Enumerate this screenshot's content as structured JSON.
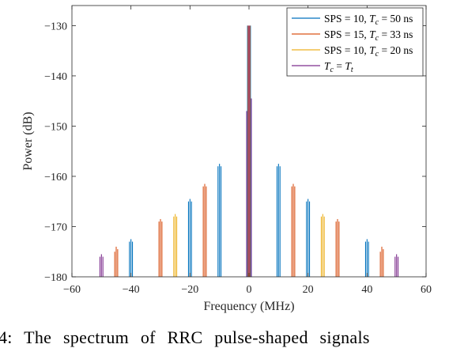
{
  "chart_data": {
    "type": "bar",
    "xlabel": "Frequency (MHz)",
    "ylabel": "Power (dB)",
    "xlim": [
      -60,
      60
    ],
    "ylim": [
      -180,
      -126
    ],
    "xticks": [
      -60,
      -40,
      -20,
      0,
      20,
      40,
      60
    ],
    "yticks": [
      -180,
      -170,
      -160,
      -150,
      -140,
      -130
    ],
    "grid": false,
    "legend_position": "top-right",
    "series": [
      {
        "name": "SPS = 10, Tc = 50 ns",
        "legend_parts": [
          "SPS = 10, ",
          "T",
          "c",
          " = 50 ns"
        ],
        "color": "#0072BD",
        "lines": [
          {
            "x": -40.5,
            "y": -173
          },
          {
            "x": -40,
            "y": -172.5
          },
          {
            "x": -39.5,
            "y": -173
          },
          {
            "x": -20.5,
            "y": -165
          },
          {
            "x": -20,
            "y": -164.5
          },
          {
            "x": -19.5,
            "y": -165
          },
          {
            "x": -10.5,
            "y": -158
          },
          {
            "x": -10,
            "y": -157.5
          },
          {
            "x": -9.5,
            "y": -158
          },
          {
            "x": -0.5,
            "y": -130
          },
          {
            "x": 0.5,
            "y": -130
          },
          {
            "x": 9.5,
            "y": -158
          },
          {
            "x": 10,
            "y": -157.5
          },
          {
            "x": 10.5,
            "y": -158
          },
          {
            "x": 19.5,
            "y": -165
          },
          {
            "x": 20,
            "y": -164.5
          },
          {
            "x": 20.5,
            "y": -165
          },
          {
            "x": 39.5,
            "y": -173
          },
          {
            "x": 40,
            "y": -172.5
          },
          {
            "x": 40.5,
            "y": -173
          }
        ]
      },
      {
        "name": "SPS = 15, Tc = 33 ns",
        "legend_parts": [
          "SPS = 15, ",
          "T",
          "c",
          " = 33 ns"
        ],
        "color": "#D95319",
        "lines": [
          {
            "x": -45.5,
            "y": -175
          },
          {
            "x": -45,
            "y": -174
          },
          {
            "x": -44.5,
            "y": -174.5
          },
          {
            "x": -30.5,
            "y": -169
          },
          {
            "x": -30,
            "y": -168.5
          },
          {
            "x": -29.5,
            "y": -169
          },
          {
            "x": -15.5,
            "y": -162
          },
          {
            "x": -15,
            "y": -161.5
          },
          {
            "x": -14.5,
            "y": -162
          },
          {
            "x": -0.3,
            "y": -130
          },
          {
            "x": 0.3,
            "y": -130
          },
          {
            "x": 14.5,
            "y": -162
          },
          {
            "x": 15,
            "y": -161.5
          },
          {
            "x": 15.5,
            "y": -162
          },
          {
            "x": 29.5,
            "y": -169
          },
          {
            "x": 30,
            "y": -168.5
          },
          {
            "x": 30.5,
            "y": -169
          },
          {
            "x": 44.5,
            "y": -175
          },
          {
            "x": 45,
            "y": -174
          },
          {
            "x": 45.5,
            "y": -174.5
          }
        ]
      },
      {
        "name": "SPS = 10, Tc = 20 ns",
        "legend_parts": [
          "SPS = 10, ",
          "T",
          "c",
          " = 20 ns"
        ],
        "color": "#EDB120",
        "lines": [
          {
            "x": -25.5,
            "y": -168
          },
          {
            "x": -25,
            "y": -167.5
          },
          {
            "x": -24.5,
            "y": -168
          },
          {
            "x": 24.5,
            "y": -168
          },
          {
            "x": 25,
            "y": -167.5
          },
          {
            "x": 25.5,
            "y": -168
          }
        ]
      },
      {
        "name": "Tc = Tt",
        "legend_parts": [
          "",
          "T",
          "c",
          " = ",
          "T",
          "t"
        ],
        "color": "#7E2F8E",
        "lines": [
          {
            "x": -50.5,
            "y": -176
          },
          {
            "x": -50,
            "y": -175.5
          },
          {
            "x": -49.5,
            "y": -176
          },
          {
            "x": -0.8,
            "y": -147
          },
          {
            "x": 0,
            "y": -130
          },
          {
            "x": 0.8,
            "y": -144.5
          },
          {
            "x": 49.5,
            "y": -176
          },
          {
            "x": 50,
            "y": -175.5
          },
          {
            "x": 50.5,
            "y": -176
          }
        ]
      }
    ]
  },
  "caption": "4: The spectrum of RRC pulse-shaped signals"
}
